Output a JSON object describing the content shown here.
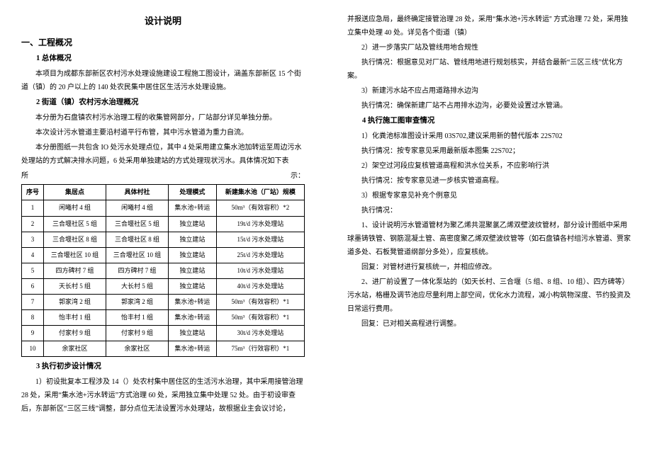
{
  "left": {
    "doc_title": "设计说明",
    "h1": "一、工程概况",
    "sec1_title": "1 总体概况",
    "sec1_p1": "本项目为成都东部新区农村污水处理设施建设工程施工图设计，涵盖东部新区 15 个街道（镇）的 20 户以上的 140 处农民集中居住区生活污水处理设施。",
    "sec2_title": "2 街道（镇）农村污水治理概况",
    "sec2_p1": "本分册为石盘镇农村污水治理工程的收集管网部分，厂站部分详见单独分册。",
    "sec2_p2": "本次设计污水管道主要沿村道平行布管，其中污水管道为重力自流。",
    "sec2_p3": "本分册图纸一共包含 IO 处污水处理点位，其中 4 处采用建立集水池加转运至周边污水处理站的方式解决排水问题，6 处采用单独建站的方式处理现状污水。具体情况如下表",
    "table_caption_left": "所",
    "table_caption_right": "示：",
    "table": {
      "headers": [
        "序号",
        "集居点",
        "具体村社",
        "处理模式",
        "新建集水池（厂站）规模"
      ],
      "rows": [
        [
          "1",
          "闲曦村 4 组",
          "闲曦村 4 组",
          "集水池+转运",
          "50m³（有效容积）*2"
        ],
        [
          "2",
          "三合堰社区 5 组",
          "三合堰社区 5 组",
          "独立建站",
          "19t/d 污水处理站"
        ],
        [
          "3",
          "三合堰社区 8 组",
          "三合堰社区 8 组",
          "独立建站",
          "15t/d 污水处理站"
        ],
        [
          "4",
          "三合堰社区 10 组",
          "三合堰社区 10 组",
          "独立建站",
          "25t/d 污水处理站"
        ],
        [
          "5",
          "四方碑村 7 组",
          "四方碑村 7 组",
          "独立建站",
          "10t/d 污水处理站"
        ],
        [
          "6",
          "天长村 5 组",
          "大长村 5 组",
          "独立建站",
          "40t/d 污水处理站"
        ],
        [
          "7",
          "郭家湾 2 组",
          "郭家湾 2 组",
          "集水池+转运",
          "50m³（有效容积）*1"
        ],
        [
          "8",
          "怡丰村 1 组",
          "怡丰村 1 组",
          "集水池+转运",
          "50m³（有效容积）*1"
        ],
        [
          "9",
          "付家村 9 组",
          "付家村 9 组",
          "独立建站",
          "30t/d 污水处理站"
        ],
        [
          "10",
          "余家社区",
          "余家社区",
          "集水池+转运",
          "75m³（行效容积）*1"
        ]
      ]
    },
    "sec3_title": "3 执行初步设计情况",
    "sec3_p1": "1）初设批复本工程涉及 14（）处农村集中居住区的生活污水治理，其中采用接管治理 28 处，采用“集水池+污水转运”方式治理 60 处，采用独立集中处理 52 处。由于初设审查后，东部新区“三区三线”调整，部分点位无法设置污水处理站，故根据业主会议讨论，"
  },
  "right": {
    "p0": "并报送应急局，最终确定接管治理 28 处，采用“集水池+污水转运'' 方式治理 72 处，采用独立集中处理 40 处。详见各个街道（镇）",
    "i2_title": "2）进一步落实厂站及管线用地合规性",
    "i2_p": "执行情况：根据意见对厂站、管线用地进行规划核实，并结合最新“三区三线”优化方案。",
    "i3_title": "3）新建污水站不应占用道路排水边沟",
    "i3_p": "执行情况：确保新建厂站不占用排水边沟，必要处设置过水管涵。",
    "sec4_title": "4 执行施工图审查情况",
    "i4_1": "1）化粪池标准图设计采用 03S702,建议采用新的替代版本 22S702",
    "i4_1p": "执行情况：按专家意见采用最新版本图集 22S702；",
    "i4_2": "2）架空过河段应复核管道高程和洪水位关系，不应影响行洪",
    "i4_2p": "执行情况：按专家意见进一步核实管道高程。",
    "i4_3": "3）根据专家意见补充个例意见",
    "i4_3h": "执行情况：",
    "i4_3a": "1、设计说明污水管道管材为聚乙烯共混聚氯乙烯双壁波纹管材，部分设计图纸中采用球墨铸铁管、钢筋混凝土管、高密度聚乙烯双壁波纹管等（如石盘镇各村组污水管道、贾家道多处、石板凳管道纲部分多处），应复核统。",
    "i4_3a2": "回复：对管材进行复核统一，并相应修改。",
    "i4_3b": "2、进厂前设置了一体化泵站的（如天长村、三合堰（5 组、8 组、10 组）、四方碑等）污水站，格栅及调节池应尽量利用上部空间，优化水力流程，减小构筑物深度、节约投资及日常运行费用。",
    "i4_3b2": "回复：已对相关高程进行调整。"
  }
}
